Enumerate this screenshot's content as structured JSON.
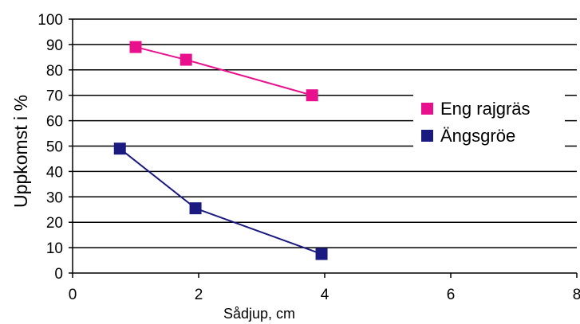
{
  "chart_data": {
    "type": "line",
    "xlabel": "Sådjup, cm",
    "ylabel": "Uppkomst i %",
    "xlim": [
      0,
      8
    ],
    "ylim": [
      0,
      100
    ],
    "x_ticks": [
      "0",
      "2",
      "4",
      "6",
      "8"
    ],
    "y_ticks": [
      "0",
      "10",
      "20",
      "30",
      "40",
      "50",
      "60",
      "70",
      "80",
      "90",
      "100"
    ],
    "grid": "horizontal",
    "legend_position": "right",
    "series": [
      {
        "name": "Eng rajgräs",
        "color": "#e8108c",
        "x": [
          1.0,
          1.8,
          3.8
        ],
        "y": [
          89,
          84,
          70
        ]
      },
      {
        "name": "Ängsgröe",
        "color": "#1a1a80",
        "x": [
          0.75,
          1.95,
          3.95
        ],
        "y": [
          49,
          25.5,
          7.5
        ]
      }
    ]
  }
}
